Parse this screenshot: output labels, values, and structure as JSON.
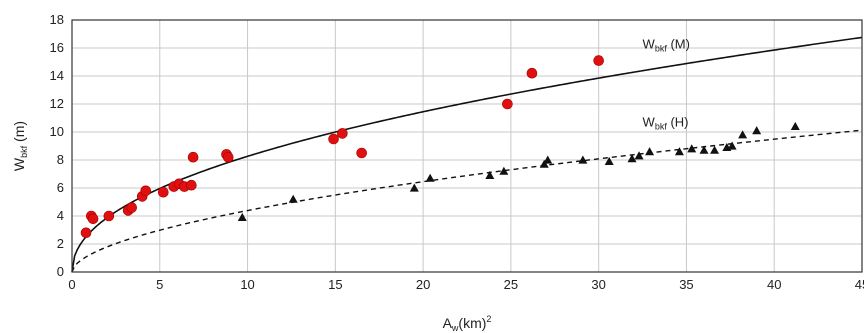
{
  "chart_data": {
    "type": "scatter",
    "title": "",
    "xlabel": {
      "main": "A",
      "sub": "w",
      "rest": "(km)",
      "sup": "2"
    },
    "ylabel": {
      "main": "W",
      "sub": "bkf",
      "rest": " (m)"
    },
    "xlim": [
      0,
      45
    ],
    "ylim": [
      0,
      18
    ],
    "xticks": [
      "0",
      "5",
      "10",
      "15",
      "20",
      "25",
      "30",
      "35",
      "40",
      "45"
    ],
    "yticks": [
      "0",
      "2",
      "4",
      "6",
      "8",
      "10",
      "12",
      "14",
      "16",
      "18"
    ],
    "grid": true,
    "series": [
      {
        "marker": "circle",
        "color": "#e01010",
        "points": [
          [
            0.8,
            2.8
          ],
          [
            1.1,
            4.0
          ],
          [
            1.2,
            3.8
          ],
          [
            2.1,
            4.0
          ],
          [
            3.2,
            4.4
          ],
          [
            3.4,
            4.6
          ],
          [
            4.0,
            5.4
          ],
          [
            4.2,
            5.8
          ],
          [
            5.2,
            5.7
          ],
          [
            5.8,
            6.1
          ],
          [
            6.1,
            6.3
          ],
          [
            6.4,
            6.1
          ],
          [
            6.8,
            6.2
          ],
          [
            6.9,
            8.2
          ],
          [
            8.8,
            8.4
          ],
          [
            8.9,
            8.2
          ],
          [
            14.9,
            9.5
          ],
          [
            15.4,
            9.9
          ],
          [
            16.5,
            8.5
          ],
          [
            24.8,
            12.0
          ],
          [
            26.2,
            14.2
          ],
          [
            30.0,
            15.1
          ]
        ]
      },
      {
        "marker": "triangle",
        "color": "#111111",
        "points": [
          [
            9.7,
            3.9
          ],
          [
            12.6,
            5.2
          ],
          [
            19.5,
            6.0
          ],
          [
            20.4,
            6.7
          ],
          [
            23.8,
            6.9
          ],
          [
            24.6,
            7.2
          ],
          [
            26.9,
            7.7
          ],
          [
            27.1,
            8.0
          ],
          [
            29.1,
            8.0
          ],
          [
            30.6,
            7.9
          ],
          [
            31.9,
            8.1
          ],
          [
            32.3,
            8.3
          ],
          [
            32.9,
            8.6
          ],
          [
            34.6,
            8.6
          ],
          [
            35.3,
            8.8
          ],
          [
            36.0,
            8.7
          ],
          [
            36.6,
            8.7
          ],
          [
            37.3,
            8.9
          ],
          [
            37.6,
            9.0
          ],
          [
            38.2,
            9.8
          ],
          [
            39.0,
            10.1
          ],
          [
            41.2,
            10.4
          ]
        ]
      }
    ],
    "curves": [
      {
        "label": {
          "main": "W",
          "sub": "bkf",
          "rest": " (M)"
        },
        "style": "solid",
        "coef": 2.8,
        "exp": 0.47,
        "label_anchor": [
          32.5,
          15.95
        ]
      },
      {
        "label": {
          "main": "W",
          "sub": "bkf",
          "rest": " (H)"
        },
        "style": "dashed",
        "coef": 1.22,
        "exp": 0.556,
        "label_anchor": [
          32.5,
          10.4
        ]
      }
    ]
  }
}
